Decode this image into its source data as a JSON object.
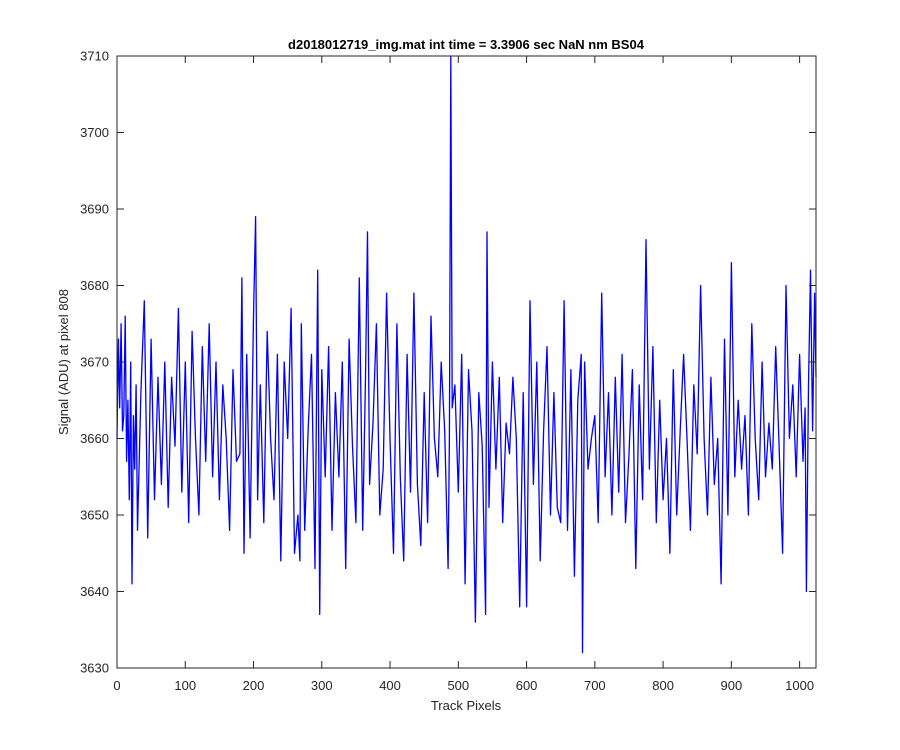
{
  "chart_data": {
    "type": "line",
    "title": "d2018012719_img.mat int time = 3.3906 sec  NaN nm BS04",
    "xlabel": "Track Pixels",
    "ylabel": "Signal (ADU) at pixel 808",
    "xlim": [
      0,
      1024
    ],
    "ylim": [
      3630,
      3710
    ],
    "xticks": [
      0,
      100,
      200,
      300,
      400,
      500,
      600,
      700,
      800,
      900,
      1000
    ],
    "yticks": [
      3630,
      3640,
      3650,
      3660,
      3670,
      3680,
      3690,
      3700,
      3710
    ],
    "grid": false,
    "box": true,
    "line_color": "#0000ff",
    "series": [
      {
        "x": [
          0,
          2,
          4,
          6,
          8,
          10,
          12,
          14,
          16,
          18,
          20,
          22,
          24,
          26,
          28,
          30,
          35,
          40,
          43,
          45,
          50,
          55,
          60,
          65,
          70,
          75,
          80,
          85,
          90,
          95,
          100,
          105,
          110,
          115,
          120,
          125,
          130,
          135,
          140,
          145,
          150,
          155,
          160,
          165,
          170,
          175,
          180,
          183,
          186,
          190,
          195,
          200,
          203,
          206,
          210,
          215,
          220,
          225,
          230,
          235,
          240,
          245,
          250,
          255,
          260,
          265,
          268,
          270,
          275,
          280,
          285,
          290,
          294,
          297,
          300,
          305,
          310,
          315,
          320,
          325,
          330,
          335,
          340,
          345,
          350,
          355,
          360,
          364,
          367,
          370,
          375,
          380,
          385,
          390,
          395,
          400,
          405,
          410,
          415,
          420,
          425,
          430,
          435,
          440,
          445,
          450,
          455,
          460,
          465,
          470,
          475,
          480,
          485,
          487,
          489,
          491,
          495,
          500,
          505,
          510,
          515,
          520,
          525,
          530,
          535,
          540,
          542,
          545,
          550,
          555,
          560,
          565,
          570,
          575,
          580,
          585,
          590,
          595,
          600,
          605,
          610,
          615,
          620,
          625,
          630,
          635,
          640,
          645,
          650,
          655,
          660,
          665,
          670,
          675,
          680,
          682,
          685,
          690,
          695,
          700,
          705,
          710,
          715,
          720,
          725,
          730,
          735,
          740,
          745,
          750,
          755,
          760,
          765,
          770,
          775,
          780,
          785,
          790,
          795,
          800,
          805,
          810,
          815,
          820,
          825,
          830,
          835,
          840,
          845,
          850,
          855,
          860,
          865,
          870,
          875,
          880,
          885,
          890,
          895,
          900,
          905,
          910,
          915,
          920,
          925,
          930,
          935,
          940,
          945,
          950,
          955,
          960,
          965,
          970,
          975,
          980,
          985,
          990,
          995,
          1000,
          1005,
          1008,
          1010,
          1013,
          1016,
          1019,
          1022,
          1024
        ],
        "y": [
          3660,
          3673,
          3664,
          3675,
          3661,
          3663,
          3676,
          3657,
          3665,
          3652,
          3670,
          3641,
          3663,
          3656,
          3667,
          3648,
          3666,
          3678,
          3660,
          3647,
          3673,
          3652,
          3668,
          3654,
          3670,
          3651,
          3668,
          3659,
          3677,
          3653,
          3670,
          3649,
          3674,
          3660,
          3650,
          3672,
          3657,
          3675,
          3655,
          3670,
          3652,
          3667,
          3660,
          3648,
          3669,
          3657,
          3658,
          3681,
          3645,
          3671,
          3647,
          3676,
          3689,
          3652,
          3667,
          3649,
          3674,
          3660,
          3652,
          3671,
          3644,
          3670,
          3660,
          3677,
          3645,
          3650,
          3644,
          3675,
          3648,
          3661,
          3671,
          3643,
          3682,
          3637,
          3669,
          3655,
          3672,
          3648,
          3666,
          3655,
          3670,
          3643,
          3673,
          3659,
          3649,
          3681,
          3648,
          3668,
          3687,
          3654,
          3662,
          3675,
          3650,
          3656,
          3679,
          3660,
          3645,
          3675,
          3655,
          3644,
          3671,
          3653,
          3679,
          3654,
          3646,
          3666,
          3649,
          3676,
          3660,
          3655,
          3670,
          3661,
          3643,
          3660,
          3710,
          3664,
          3667,
          3653,
          3671,
          3641,
          3669,
          3661,
          3636,
          3666,
          3659,
          3637,
          3687,
          3651,
          3670,
          3656,
          3668,
          3649,
          3662,
          3658,
          3668,
          3660,
          3638,
          3666,
          3638,
          3678,
          3654,
          3670,
          3644,
          3661,
          3672,
          3650,
          3666,
          3651,
          3649,
          3678,
          3648,
          3669,
          3642,
          3665,
          3671,
          3632,
          3670,
          3656,
          3660,
          3663,
          3649,
          3679,
          3655,
          3666,
          3650,
          3668,
          3653,
          3671,
          3649,
          3658,
          3669,
          3643,
          3667,
          3652,
          3686,
          3656,
          3672,
          3649,
          3665,
          3652,
          3660,
          3645,
          3669,
          3650,
          3661,
          3671,
          3660,
          3648,
          3667,
          3658,
          3680,
          3660,
          3650,
          3668,
          3654,
          3660,
          3641,
          3673,
          3650,
          3683,
          3655,
          3665,
          3656,
          3663,
          3650,
          3675,
          3660,
          3652,
          3670,
          3655,
          3662,
          3656,
          3672,
          3659,
          3645,
          3680,
          3660,
          3667,
          3655,
          3671,
          3657,
          3664,
          3640,
          3667,
          3682,
          3661,
          3679,
          3668
        ]
      }
    ]
  }
}
